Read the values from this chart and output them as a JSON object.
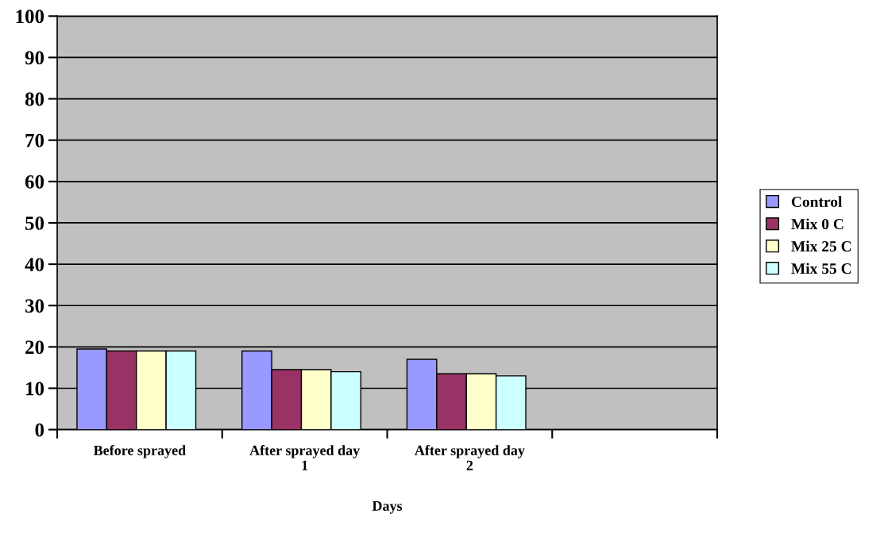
{
  "chart_data": {
    "type": "bar",
    "xlabel": "Days",
    "categories": [
      "Before sprayed",
      "After sprayed day 1",
      "After sprayed day 2",
      null
    ],
    "series": [
      {
        "name": "Control",
        "color": "#9999ff",
        "values": [
          19.5,
          19,
          17,
          null
        ]
      },
      {
        "name": "Mix 0 C",
        "color": "#993366",
        "values": [
          19,
          14.5,
          13.5,
          null
        ]
      },
      {
        "name": "Mix 25 C",
        "color": "#ffffcc",
        "values": [
          19,
          14.5,
          13.5,
          null
        ]
      },
      {
        "name": "Mix 55 C",
        "color": "#ccffff",
        "values": [
          19,
          14,
          13,
          null
        ]
      }
    ],
    "ylim": [
      0,
      100
    ],
    "yticks": [
      0,
      10,
      20,
      30,
      40,
      50,
      60,
      70,
      80,
      90,
      100
    ],
    "grid": "y",
    "legend": "right"
  }
}
